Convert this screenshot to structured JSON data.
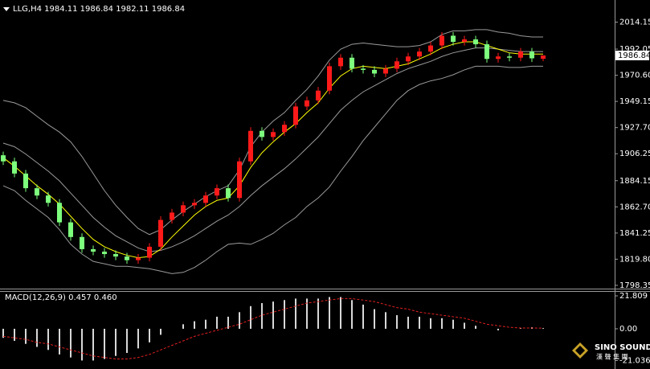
{
  "chart_data": [
    {
      "type": "candlestick",
      "title": "LLG,H4  1984.11 1986.84 1982.11 1986.84",
      "open": [
        1905,
        1900,
        1890,
        1878,
        1872,
        1866,
        1850,
        1838,
        1828,
        1826,
        1824,
        1822,
        1819,
        1821,
        1830,
        1852,
        1858,
        1864,
        1866,
        1872,
        1878,
        1870,
        1900,
        1925,
        1920,
        1924,
        1930,
        1945,
        1950,
        1958,
        1978,
        1985,
        1976,
        1975,
        1972,
        1976,
        1982,
        1986,
        1990,
        1995,
        2003,
        1998,
        2000,
        1996,
        1984,
        1986,
        1985,
        1990,
        1984.11
      ],
      "high": [
        1908,
        1903,
        1893,
        1881,
        1875,
        1869,
        1853,
        1841,
        1831,
        1829,
        1827,
        1825,
        1824,
        1833,
        1855,
        1861,
        1867,
        1869,
        1875,
        1881,
        1881,
        1903,
        1928,
        1928,
        1927,
        1933,
        1948,
        1953,
        1961,
        1981,
        1988,
        1988,
        1979,
        1978,
        1979,
        1985,
        1989,
        1993,
        1998,
        2006,
        2006,
        2003,
        2003,
        1999,
        1989,
        1989,
        1993,
        1993,
        1986.84
      ],
      "low": [
        1897,
        1887,
        1875,
        1869,
        1863,
        1847,
        1835,
        1825,
        1823,
        1821,
        1819,
        1816,
        1816,
        1818,
        1827,
        1849,
        1855,
        1861,
        1863,
        1869,
        1867,
        1867,
        1897,
        1917,
        1917,
        1921,
        1927,
        1942,
        1947,
        1955,
        1975,
        1973,
        1972,
        1969,
        1969,
        1973,
        1979,
        1983,
        1987,
        1992,
        1995,
        1995,
        1993,
        1981,
        1981,
        1982,
        1982,
        1981.5,
        1982.11
      ],
      "close": [
        1900,
        1890,
        1878,
        1872,
        1866,
        1850,
        1838,
        1828,
        1826,
        1824,
        1822,
        1819,
        1821,
        1830,
        1852,
        1858,
        1864,
        1866,
        1872,
        1878,
        1870,
        1900,
        1925,
        1920,
        1924,
        1930,
        1945,
        1950,
        1958,
        1978,
        1985,
        1976,
        1975,
        1972,
        1976,
        1982,
        1986,
        1990,
        1995,
        2003,
        1998,
        2000,
        1996,
        1984,
        1986,
        1985,
        1990,
        1984.5,
        1986.84
      ],
      "up_color": "#ff1a1a",
      "down_color": "#7dff7d",
      "bollinger": {
        "color": "#9a9a9a",
        "middle": [
          1915,
          1912,
          1906,
          1899,
          1892,
          1884,
          1874,
          1864,
          1854,
          1846,
          1839,
          1834,
          1829,
          1826,
          1827,
          1830,
          1834,
          1839,
          1845,
          1851,
          1856,
          1863,
          1872,
          1880,
          1887,
          1894,
          1902,
          1911,
          1920,
          1931,
          1942,
          1950,
          1957,
          1962,
          1967,
          1972,
          1976,
          1979,
          1982,
          1986,
          1989,
          1991,
          1993,
          1993,
          1992,
          1991,
          1990,
          1990,
          1990
        ],
        "deviation": [
          35,
          36,
          38,
          38,
          38,
          40,
          42,
          40,
          36,
          30,
          25,
          20,
          16,
          14,
          17,
          22,
          25,
          26,
          26,
          25,
          24,
          30,
          40,
          44,
          46,
          46,
          48,
          48,
          50,
          52,
          50,
          46,
          40,
          34,
          28,
          22,
          18,
          16,
          16,
          18,
          18,
          16,
          15,
          15,
          14,
          14,
          13,
          12,
          12
        ]
      },
      "ma": {
        "color": "#ffff00",
        "values": [
          1903,
          1896,
          1888,
          1880,
          1873,
          1865,
          1855,
          1845,
          1836,
          1830,
          1826,
          1823,
          1821,
          1822,
          1828,
          1838,
          1847,
          1856,
          1863,
          1868,
          1870,
          1880,
          1895,
          1907,
          1916,
          1924,
          1931,
          1940,
          1948,
          1960,
          1970,
          1976,
          1978,
          1977,
          1976,
          1978,
          1980,
          1984,
          1988,
          1993,
          1996,
          1998,
          1998,
          1995,
          1992,
          1989,
          1988,
          1988,
          1988
        ]
      },
      "last_price": 1986.84,
      "ylim": [
        1797,
        2029
      ],
      "yticks": [
        2014.15,
        1992.05,
        {
          "value": 1970.6,
          "label": "1970.60"
        },
        1949.15,
        {
          "value": 1927.7,
          "label": "1927.70"
        },
        1906.25,
        1884.15,
        {
          "value": 1862.7,
          "label": "1862.70"
        },
        1841.25,
        {
          "value": 1819.8,
          "label": "1819.80"
        },
        1798.35
      ]
    },
    {
      "type": "macd",
      "title": "MACD(12,26,9) 0.457 0.460",
      "histogram": {
        "color": "#d8d8d8",
        "values": [
          -6,
          -8,
          -10,
          -12,
          -14,
          -17,
          -19,
          -21,
          -21,
          -20,
          -18,
          -16,
          -13,
          -9,
          -4,
          0,
          3,
          5,
          6,
          8,
          8,
          11,
          15,
          17,
          18,
          19,
          20,
          20,
          20,
          21,
          21,
          19,
          16,
          13,
          11,
          9,
          8,
          8,
          7,
          7,
          6,
          4,
          2,
          0,
          -1,
          0,
          0.5,
          1,
          0.457
        ]
      },
      "signal": {
        "color": "#e02020",
        "values": [
          -5,
          -6,
          -7,
          -9,
          -10,
          -12,
          -14,
          -16,
          -18,
          -19,
          -20,
          -20,
          -19,
          -17,
          -14,
          -11,
          -8,
          -5,
          -3,
          -1,
          1,
          3,
          6,
          9,
          11,
          13,
          15,
          17,
          18,
          19,
          20,
          20,
          19,
          18,
          16,
          14,
          13,
          11,
          10,
          9,
          8,
          7,
          5,
          3,
          2,
          1,
          0.5,
          0.5,
          0.46
        ]
      },
      "ylim": [
        -24.5,
        25
      ],
      "yticks": [
        21.809,
        {
          "value": 0,
          "label": "0.00"
        },
        -21.036
      ]
    }
  ],
  "watermark": {
    "title": "SINO SOUND",
    "subtitle": "漢 聲 集 團"
  }
}
